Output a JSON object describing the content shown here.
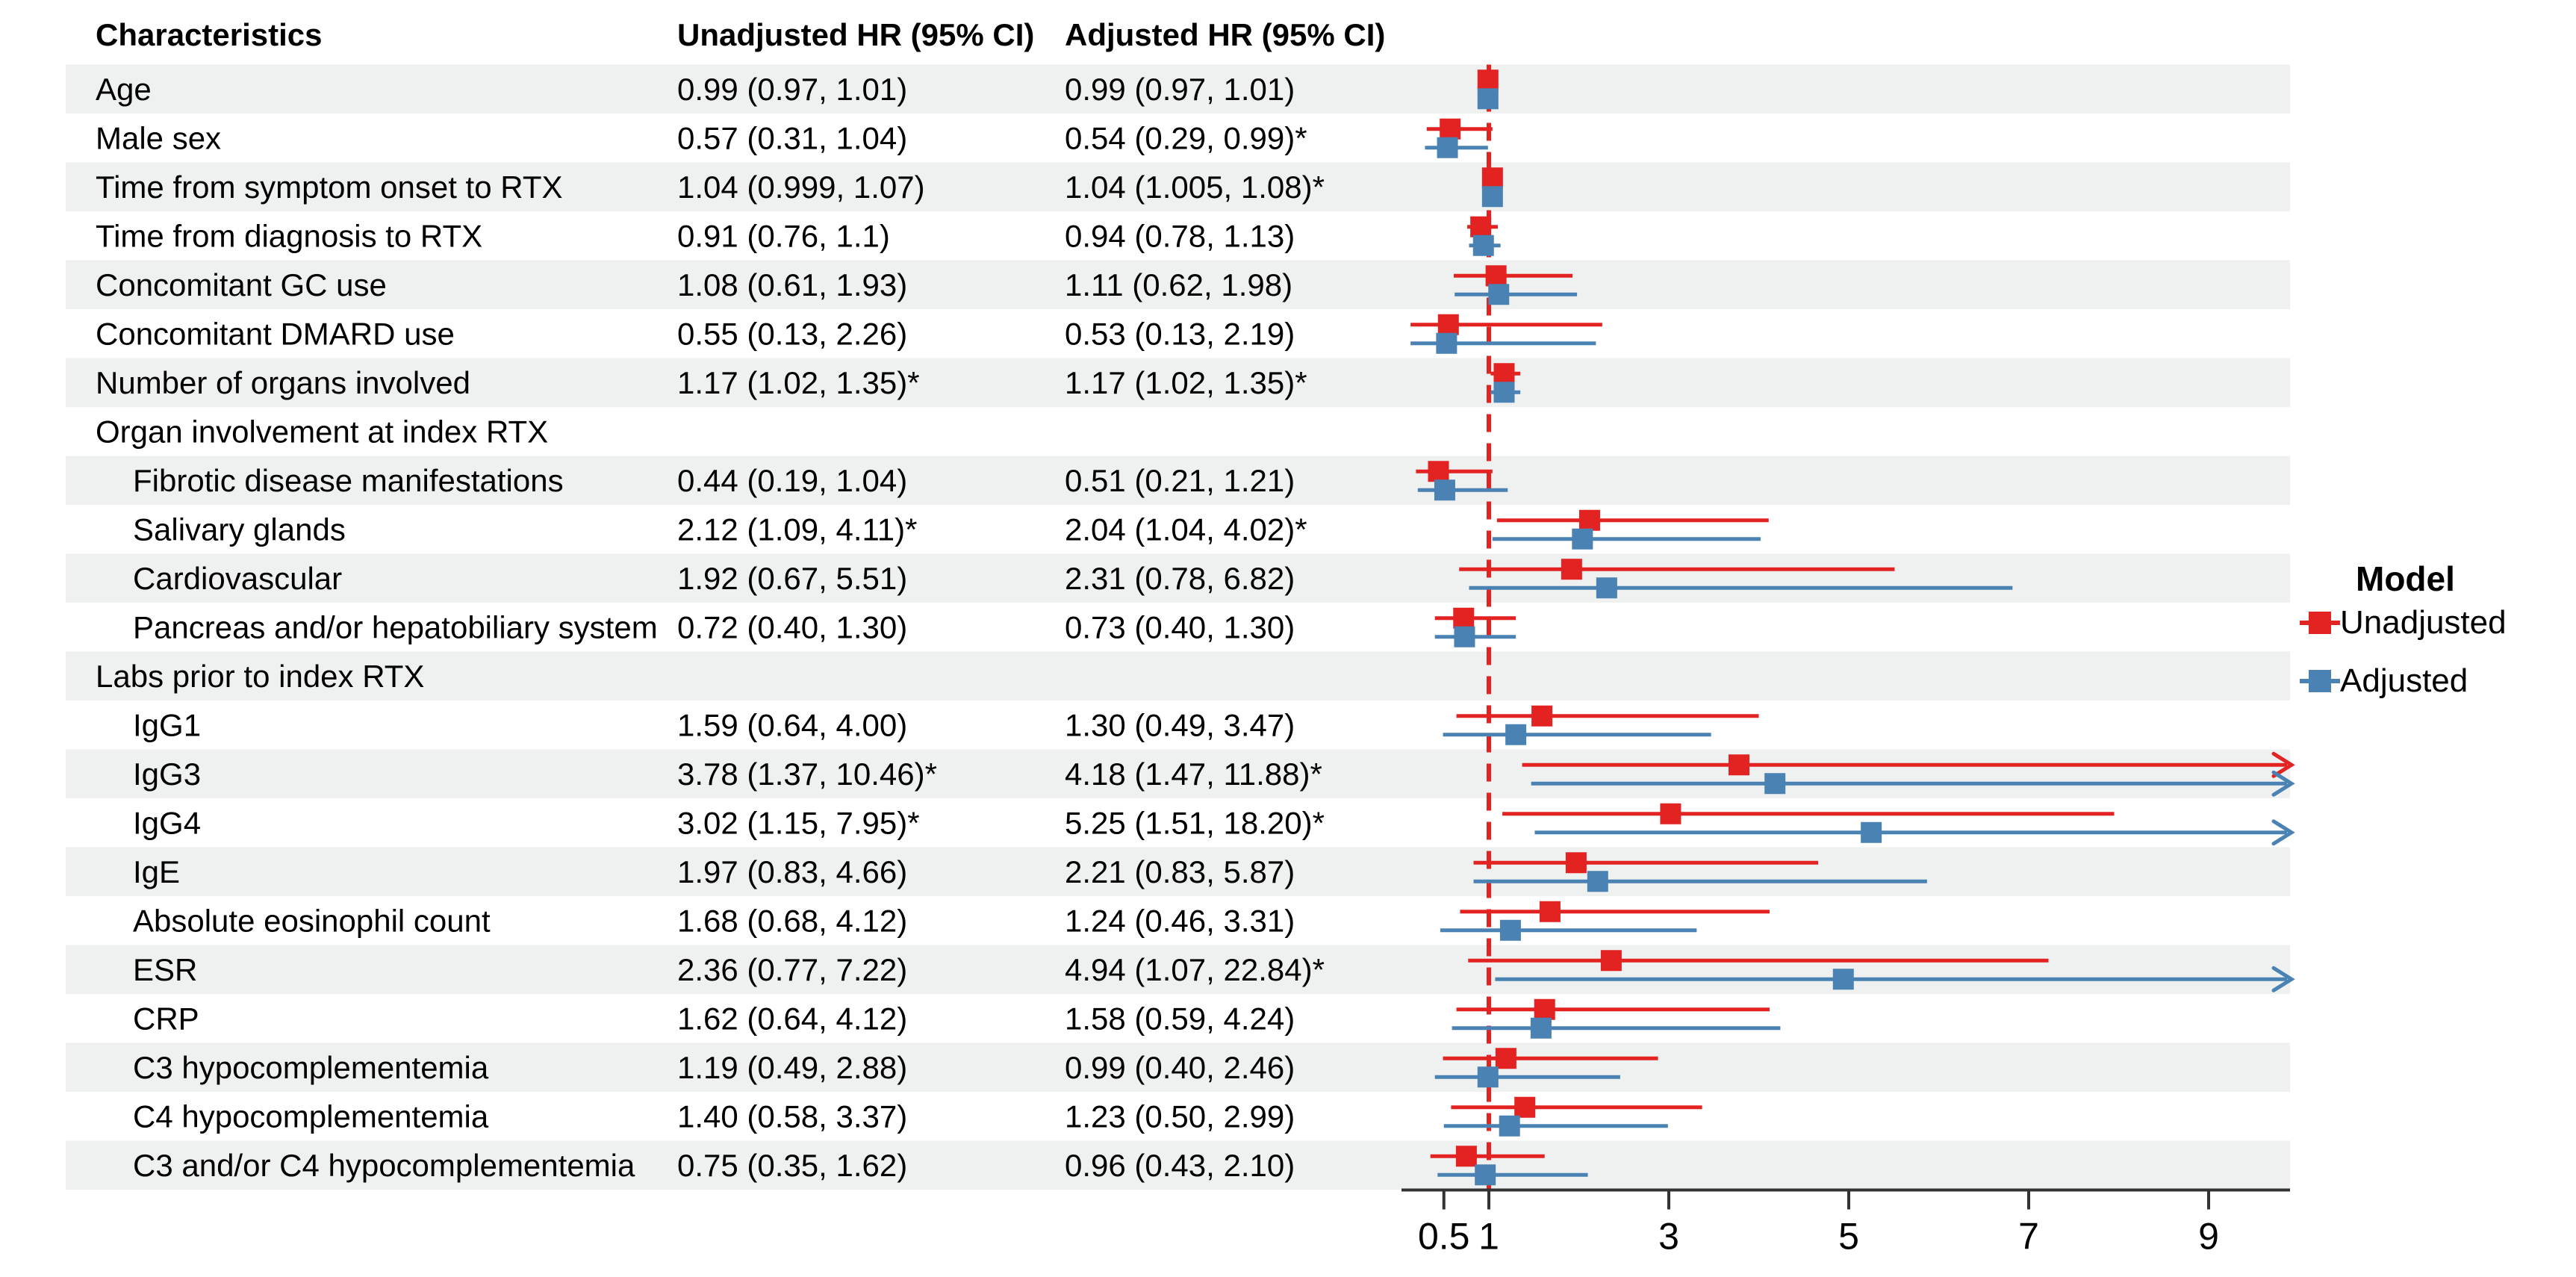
{
  "table": {
    "columns": [
      "Characteristics",
      "Unadjusted HR (95% CI)",
      "Adjusted HR (95% CI)"
    ]
  },
  "legend": {
    "title": "Model",
    "items": [
      {
        "label": "Unadjusted",
        "color": "#e32222"
      },
      {
        "label": "Adjusted",
        "color": "#4a82b4"
      }
    ]
  },
  "theme": {
    "stripe_color": "#eef1ef",
    "axis_color": "#333333",
    "text_color": "#000000",
    "reference_line_color": "#e32222"
  },
  "chart_data": {
    "type": "forest",
    "x_axis": {
      "scale": "linear",
      "ticks": [
        0.5,
        1,
        3,
        5,
        7,
        9
      ],
      "range_shown": [
        0,
        9.9
      ],
      "reference_line": 1,
      "clipped_upper_cis_drawn_as_arrows": true
    },
    "legend_position": "right",
    "series": [
      {
        "name": "Unadjusted",
        "color": "#e32222",
        "marker": "square"
      },
      {
        "name": "Adjusted",
        "color": "#4a82b4",
        "marker": "square"
      }
    ],
    "rows": [
      {
        "label": "Age",
        "indent": 0,
        "unadjusted": {
          "text": "0.99 (0.97, 1.01)",
          "est": 0.99,
          "lo": 0.97,
          "hi": 1.01
        },
        "adjusted": {
          "text": "0.99 (0.97, 1.01)",
          "est": 0.99,
          "lo": 0.97,
          "hi": 1.01
        }
      },
      {
        "label": "Male sex",
        "indent": 0,
        "unadjusted": {
          "text": "0.57 (0.31, 1.04)",
          "est": 0.57,
          "lo": 0.31,
          "hi": 1.04
        },
        "adjusted": {
          "text": "0.54 (0.29, 0.99)*",
          "est": 0.54,
          "lo": 0.29,
          "hi": 0.99
        }
      },
      {
        "label": "Time from symptom onset to RTX",
        "indent": 0,
        "unadjusted": {
          "text": "1.04 (0.999, 1.07)",
          "est": 1.04,
          "lo": 0.999,
          "hi": 1.07
        },
        "adjusted": {
          "text": "1.04 (1.005, 1.08)*",
          "est": 1.04,
          "lo": 1.005,
          "hi": 1.08
        }
      },
      {
        "label": "Time from diagnosis to RTX",
        "indent": 0,
        "unadjusted": {
          "text": "0.91 (0.76, 1.1)",
          "est": 0.91,
          "lo": 0.76,
          "hi": 1.1
        },
        "adjusted": {
          "text": "0.94 (0.78, 1.13)",
          "est": 0.94,
          "lo": 0.78,
          "hi": 1.13
        }
      },
      {
        "label": "Concomitant GC use",
        "indent": 0,
        "unadjusted": {
          "text": "1.08 (0.61, 1.93)",
          "est": 1.08,
          "lo": 0.61,
          "hi": 1.93
        },
        "adjusted": {
          "text": "1.11 (0.62, 1.98)",
          "est": 1.11,
          "lo": 0.62,
          "hi": 1.98
        }
      },
      {
        "label": "Concomitant DMARD use",
        "indent": 0,
        "unadjusted": {
          "text": "0.55 (0.13, 2.26)",
          "est": 0.55,
          "lo": 0.13,
          "hi": 2.26
        },
        "adjusted": {
          "text": "0.53 (0.13, 2.19)",
          "est": 0.53,
          "lo": 0.13,
          "hi": 2.19
        }
      },
      {
        "label": "Number of organs involved",
        "indent": 0,
        "unadjusted": {
          "text": "1.17 (1.02, 1.35)*",
          "est": 1.17,
          "lo": 1.02,
          "hi": 1.35
        },
        "adjusted": {
          "text": "1.17 (1.02, 1.35)*",
          "est": 1.17,
          "lo": 1.02,
          "hi": 1.35
        }
      },
      {
        "label": "Organ involvement at index RTX",
        "indent": 0,
        "section": true
      },
      {
        "label": "Fibrotic disease manifestations",
        "indent": 1,
        "unadjusted": {
          "text": "0.44 (0.19, 1.04)",
          "est": 0.44,
          "lo": 0.19,
          "hi": 1.04
        },
        "adjusted": {
          "text": "0.51 (0.21, 1.21)",
          "est": 0.51,
          "lo": 0.21,
          "hi": 1.21
        }
      },
      {
        "label": "Salivary glands",
        "indent": 1,
        "unadjusted": {
          "text": "2.12 (1.09, 4.11)*",
          "est": 2.12,
          "lo": 1.09,
          "hi": 4.11
        },
        "adjusted": {
          "text": "2.04 (1.04, 4.02)*",
          "est": 2.04,
          "lo": 1.04,
          "hi": 4.02
        }
      },
      {
        "label": "Cardiovascular",
        "indent": 1,
        "unadjusted": {
          "text": "1.92 (0.67, 5.51)",
          "est": 1.92,
          "lo": 0.67,
          "hi": 5.51
        },
        "adjusted": {
          "text": "2.31 (0.78, 6.82)",
          "est": 2.31,
          "lo": 0.78,
          "hi": 6.82
        }
      },
      {
        "label": "Pancreas and/or hepatobiliary system",
        "indent": 1,
        "unadjusted": {
          "text": "0.72 (0.40, 1.30)",
          "est": 0.72,
          "lo": 0.4,
          "hi": 1.3
        },
        "adjusted": {
          "text": "0.73 (0.40, 1.30)",
          "est": 0.73,
          "lo": 0.4,
          "hi": 1.3
        }
      },
      {
        "label": "Labs prior to index RTX",
        "indent": 0,
        "section": true
      },
      {
        "label": "IgG1",
        "indent": 1,
        "unadjusted": {
          "text": "1.59 (0.64, 4.00)",
          "est": 1.59,
          "lo": 0.64,
          "hi": 4.0
        },
        "adjusted": {
          "text": "1.30 (0.49, 3.47)",
          "est": 1.3,
          "lo": 0.49,
          "hi": 3.47
        }
      },
      {
        "label": "IgG3",
        "indent": 1,
        "unadjusted": {
          "text": "3.78 (1.37, 10.46)*",
          "est": 3.78,
          "lo": 1.37,
          "hi": 10.46
        },
        "adjusted": {
          "text": "4.18 (1.47, 11.88)*",
          "est": 4.18,
          "lo": 1.47,
          "hi": 11.88
        }
      },
      {
        "label": "IgG4",
        "indent": 1,
        "unadjusted": {
          "text": "3.02 (1.15, 7.95)*",
          "est": 3.02,
          "lo": 1.15,
          "hi": 7.95
        },
        "adjusted": {
          "text": "5.25 (1.51, 18.20)*",
          "est": 5.25,
          "lo": 1.51,
          "hi": 18.2
        }
      },
      {
        "label": "IgE",
        "indent": 1,
        "unadjusted": {
          "text": "1.97 (0.83, 4.66)",
          "est": 1.97,
          "lo": 0.83,
          "hi": 4.66
        },
        "adjusted": {
          "text": "2.21 (0.83, 5.87)",
          "est": 2.21,
          "lo": 0.83,
          "hi": 5.87
        }
      },
      {
        "label": "Absolute eosinophil count",
        "indent": 1,
        "unadjusted": {
          "text": "1.68 (0.68, 4.12)",
          "est": 1.68,
          "lo": 0.68,
          "hi": 4.12
        },
        "adjusted": {
          "text": "1.24 (0.46, 3.31)",
          "est": 1.24,
          "lo": 0.46,
          "hi": 3.31
        }
      },
      {
        "label": "ESR",
        "indent": 1,
        "unadjusted": {
          "text": "2.36 (0.77, 7.22)",
          "est": 2.36,
          "lo": 0.77,
          "hi": 7.22
        },
        "adjusted": {
          "text": "4.94 (1.07, 22.84)*",
          "est": 4.94,
          "lo": 1.07,
          "hi": 22.84
        }
      },
      {
        "label": "CRP",
        "indent": 1,
        "unadjusted": {
          "text": "1.62 (0.64, 4.12)",
          "est": 1.62,
          "lo": 0.64,
          "hi": 4.12
        },
        "adjusted": {
          "text": "1.58 (0.59, 4.24)",
          "est": 1.58,
          "lo": 0.59,
          "hi": 4.24
        }
      },
      {
        "label": "C3 hypocomplementemia",
        "indent": 1,
        "unadjusted": {
          "text": "1.19 (0.49, 2.88)",
          "est": 1.19,
          "lo": 0.49,
          "hi": 2.88
        },
        "adjusted": {
          "text": "0.99 (0.40, 2.46)",
          "est": 0.99,
          "lo": 0.4,
          "hi": 2.46
        }
      },
      {
        "label": "C4 hypocomplementemia",
        "indent": 1,
        "unadjusted": {
          "text": "1.40 (0.58, 3.37)",
          "est": 1.4,
          "lo": 0.58,
          "hi": 3.37
        },
        "adjusted": {
          "text": "1.23 (0.50, 2.99)",
          "est": 1.23,
          "lo": 0.5,
          "hi": 2.99
        }
      },
      {
        "label": "C3 and/or C4 hypocomplementemia",
        "indent": 1,
        "unadjusted": {
          "text": "0.75 (0.35, 1.62)",
          "est": 0.75,
          "lo": 0.35,
          "hi": 1.62
        },
        "adjusted": {
          "text": "0.96 (0.43, 2.10)",
          "est": 0.96,
          "lo": 0.43,
          "hi": 2.1
        }
      }
    ]
  }
}
